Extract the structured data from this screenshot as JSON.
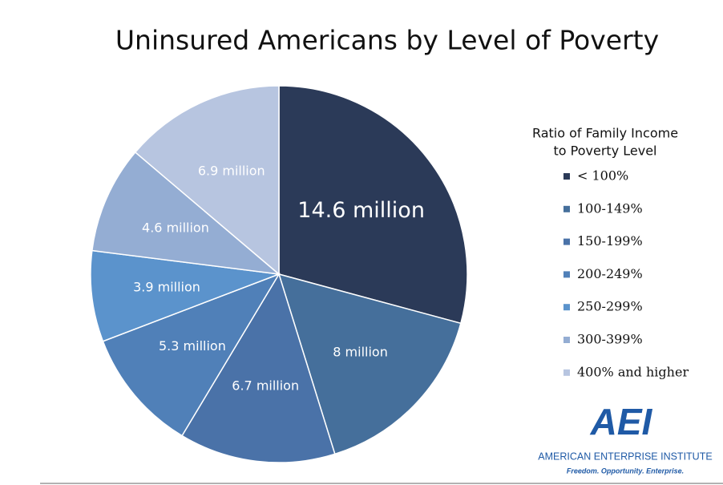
{
  "chart_data": {
    "type": "pie",
    "title": "Uninsured Americans by Level of Poverty",
    "categories": [
      "< 100%",
      "100-149%",
      "150-199%",
      "200-249%",
      "250-299%",
      "300-399%",
      "400% and higher"
    ],
    "values": [
      14.6,
      8,
      6.7,
      5.3,
      3.9,
      4.6,
      6.9
    ],
    "value_labels": [
      "14.6 million",
      "8 million",
      "6.7 million",
      "5.3 million",
      "3.9 million",
      "4.6 million",
      "6.9 million"
    ],
    "colors": [
      "#2b3a58",
      "#456f9b",
      "#4a72a8",
      "#5080b8",
      "#5b93cc",
      "#94add3",
      "#b7c5e0"
    ],
    "legend_title": [
      "Ratio of Family Income",
      "to Poverty Level"
    ]
  },
  "logo": {
    "mark": "AEI",
    "name": "AMERICAN ENTERPRISE INSTITUTE",
    "tagline": "Freedom. Opportunity. Enterprise."
  }
}
